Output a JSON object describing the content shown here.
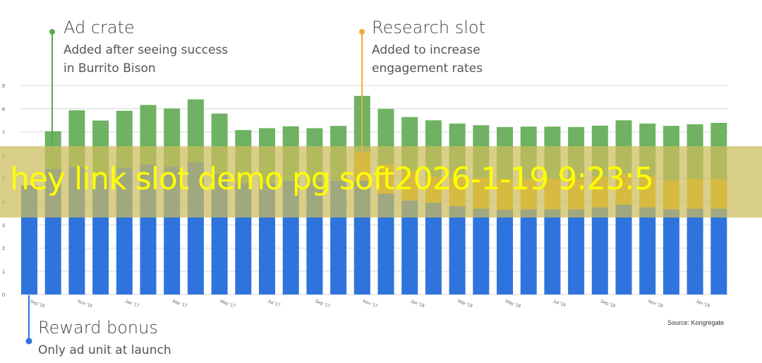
{
  "chart_data": {
    "type": "bar",
    "stacked": true,
    "categories": [
      "Sep '16",
      "Oct '16",
      "Nov '16",
      "Dec '16",
      "Jan '17",
      "Feb '17",
      "Mar '17",
      "Apr '17",
      "May '17",
      "Jun '17",
      "Jul '17",
      "Aug '17",
      "Sep '17",
      "Oct '17",
      "Nov '17",
      "Dec '17",
      "Jan '18",
      "Feb '18",
      "Mar '18",
      "Apr '18",
      "May '18",
      "Jun '18",
      "Jul '18",
      "Aug '18",
      "Sep '18",
      "Oct '18",
      "Nov '18",
      "Dec '18",
      "Jan '19",
      "Feb '19"
    ],
    "tick_labels": [
      "Sep '16",
      "Nov '16",
      "Jan '17",
      "Mar '17",
      "May '17",
      "Jul '17",
      "Sep '17",
      "Nov '17",
      "Jan '18",
      "Mar '18",
      "May '18",
      "Jul '18",
      "Sep '18",
      "Nov '18",
      "Jan '19"
    ],
    "series": [
      {
        "name": "Reward bonus",
        "color": "#2f74dc",
        "values": [
          4.7,
          5.4,
          5.5,
          5.1,
          5.45,
          5.6,
          5.5,
          5.7,
          5.2,
          4.8,
          4.8,
          4.9,
          4.85,
          4.9,
          4.9,
          4.35,
          4.05,
          3.95,
          3.8,
          3.7,
          3.65,
          3.67,
          3.67,
          3.67,
          3.75,
          3.87,
          3.75,
          3.67,
          3.7,
          3.7
        ]
      },
      {
        "name": "Research slot",
        "color": "#f4b400",
        "values": [
          0,
          0,
          0,
          0,
          0,
          0,
          0,
          0,
          0,
          0,
          0,
          0,
          0,
          0,
          1.23,
          1.25,
          1.27,
          1.12,
          1.22,
          1.32,
          1.32,
          1.28,
          1.3,
          1.3,
          1.33,
          1.29,
          1.33,
          1.23,
          1.27,
          1.27
        ]
      },
      {
        "name": "Ad crate",
        "color": "#6fb263",
        "values": [
          0,
          1.63,
          2.43,
          2.39,
          2.46,
          2.56,
          2.51,
          2.7,
          2.59,
          2.28,
          2.36,
          2.34,
          2.31,
          2.36,
          2.42,
          2.39,
          2.32,
          2.43,
          2.34,
          2.27,
          2.24,
          2.28,
          2.26,
          2.24,
          2.19,
          2.34,
          2.28,
          2.36,
          2.36,
          2.42
        ]
      }
    ],
    "ylim": [
      0,
      9
    ],
    "yticks": [
      0,
      1,
      2,
      3,
      4,
      5,
      6,
      7,
      8,
      9
    ],
    "grid": true,
    "xlabel": "",
    "ylabel": ""
  },
  "annotations": {
    "ad_crate": {
      "title": "Ad crate",
      "lines": [
        "Added after seeing success",
        "in Burrito Bison"
      ],
      "color": "#5aab4c"
    },
    "research_slot": {
      "title": "Research slot",
      "lines": [
        "Added to increase",
        "engagement rates"
      ],
      "color": "#f0ad3a"
    },
    "reward_bonus": {
      "title": "Reward bonus",
      "lines": [
        "Only ad unit at launch"
      ],
      "color": "#2f74dc"
    }
  },
  "source": "Source: Kongregate",
  "watermark": "hey link slot demo pg soft2026-1-19 9:23:5"
}
